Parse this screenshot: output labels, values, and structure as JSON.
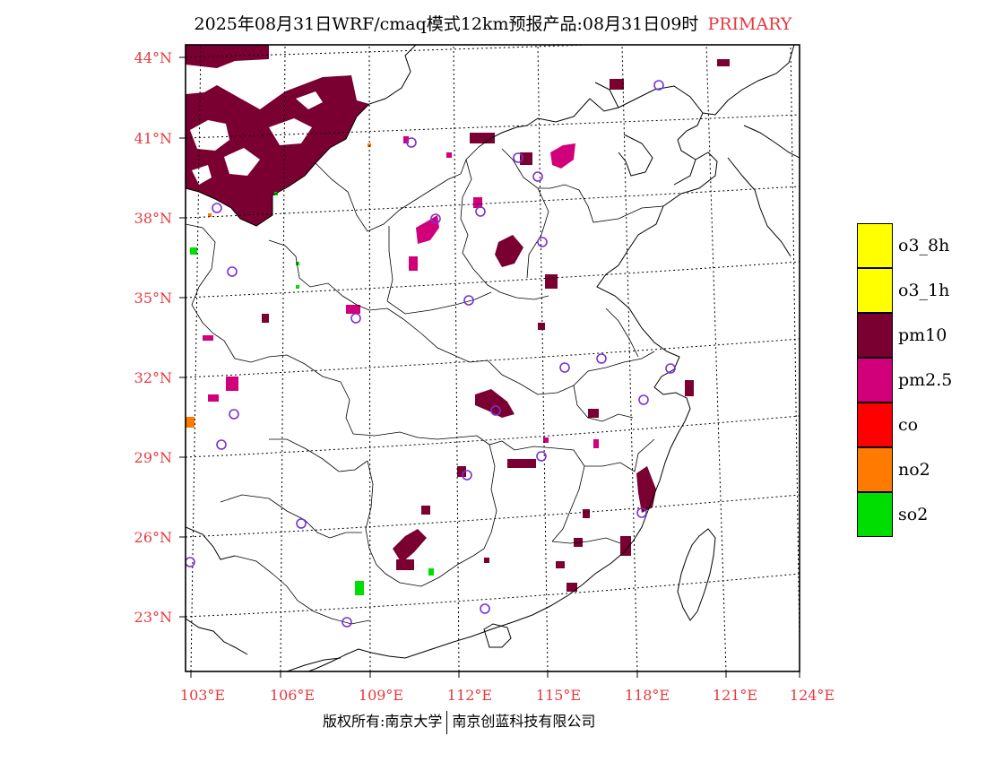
{
  "title": {
    "main": "2025年08月31日WRF/cmaq模式12km预报产品:08月31日09时",
    "tag": "PRIMARY",
    "tag_color": "#e8383d"
  },
  "map": {
    "lat_labels": [
      "44°N",
      "41°N",
      "38°N",
      "35°N",
      "32°N",
      "29°N",
      "26°N",
      "23°N"
    ],
    "lon_labels": [
      "103°E",
      "106°E",
      "109°E",
      "112°E",
      "115°E",
      "118°E",
      "121°E",
      "124°E"
    ],
    "label_color": "#e8383d",
    "pollutant_colors": {
      "pm10": "#7a0032",
      "pm2.5": "#d1007a",
      "no2": "#ff7a00",
      "so2": "#00dd00"
    },
    "station_marker_color": "#7b2fd6"
  },
  "legend": {
    "items": [
      {
        "label": "o3_8h",
        "color": "#ffff00"
      },
      {
        "label": "o3_1h",
        "color": "#ffff00"
      },
      {
        "label": "pm10",
        "color": "#7a0032"
      },
      {
        "label": "pm2.5",
        "color": "#d1007a"
      },
      {
        "label": "co",
        "color": "#ff0000"
      },
      {
        "label": "no2",
        "color": "#ff7a00"
      },
      {
        "label": "so2",
        "color": "#00dd00"
      }
    ]
  },
  "footer": {
    "left": "版权所有:南京大学",
    "right": "南京创蓝科技有限公司"
  }
}
